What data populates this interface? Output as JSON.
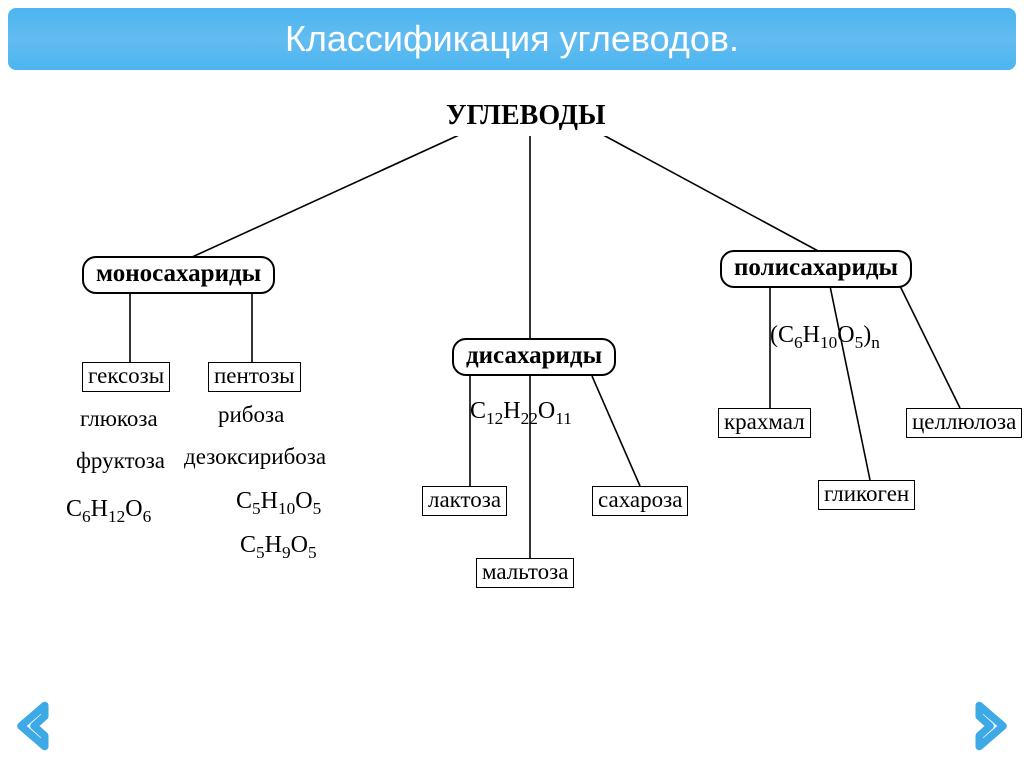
{
  "title": "Классификация углеводов.",
  "colors": {
    "title_bg_top": "#4cb5f0",
    "title_bg_mid": "#62bcf1",
    "title_text": "#ffffff",
    "arrow_fill": "#3da9e6",
    "node_border": "#000000",
    "page_bg": "#ffffff"
  },
  "root": {
    "label": "УГЛЕВОДЫ"
  },
  "branches": {
    "mono": {
      "label": "моносахариды"
    },
    "di": {
      "label": "дисахариды"
    },
    "poly": {
      "label": "полисахариды"
    }
  },
  "mono": {
    "hexoses_label": "гексозы",
    "pentoses_label": "пентозы",
    "hexose1": "глюкоза",
    "hexose2": "фруктоза",
    "hexose_formula_html": "C<span class='sub'>6</span>H<span class='sub'>12</span>O<span class='sub'>6</span>",
    "pentose1": "рибоза",
    "pentose2": "дезоксирибоза",
    "pentose_formula1_html": "C<span class='sub'>5</span>H<span class='sub'>10</span>O<span class='sub'>5</span>",
    "pentose_formula2_html": "C<span class='sub'>5</span>H<span class='sub'>9</span>O<span class='sub'>5</span>"
  },
  "di": {
    "formula_html": "C<span class='sub'>12</span>H<span class='sub'>22</span>O<span class='sub'>11</span>",
    "l1": "лактоза",
    "l2": "сахароза",
    "l3": "мальтоза"
  },
  "poly": {
    "formula_html": "(C<span class='sub'>6</span>H<span class='sub'>10</span>O<span class='sub'>5</span>)<span class='sub'>n</span>",
    "p1": "крахмал",
    "p2": "целлюлоза",
    "p3": "гликоген"
  },
  "layout": {
    "diagram_width": 1024,
    "diagram_height": 620,
    "connector_stroke_width": 1.6
  }
}
